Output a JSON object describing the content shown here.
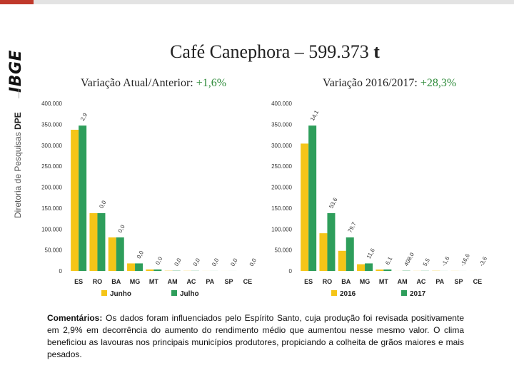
{
  "header": {
    "logo_text": "IBGE",
    "dept_prefix": "Diretoria de Pesquisas",
    "dept_abbr": "DPE",
    "divider": "|"
  },
  "title": {
    "main": "Café Canephora – 599.373",
    "unit": "t"
  },
  "colors": {
    "accent_red": "#c0392b",
    "yellow": "#f5c518",
    "green": "#2e9e5b",
    "label_green": "#2e8b3a"
  },
  "chart_data": [
    {
      "type": "bar",
      "subtitle_prefix": "Variação Atual/Anterior:",
      "subtitle_value": "+1,6%",
      "categories": [
        "ES",
        "RO",
        "BA",
        "MG",
        "MT",
        "AM",
        "AC",
        "PA",
        "SP",
        "CE"
      ],
      "series": [
        {
          "name": "Junho",
          "color": "#f5c518",
          "values": [
            337000,
            138000,
            80000,
            18000,
            3500,
            500,
            300,
            100,
            50,
            0
          ]
        },
        {
          "name": "Julho",
          "color": "#2e9e5b",
          "values": [
            347000,
            138000,
            80000,
            18000,
            3500,
            500,
            300,
            100,
            50,
            0
          ]
        }
      ],
      "change_labels": [
        "2,9",
        "0,0",
        "0,0",
        "0,0",
        "0,0",
        "0,0",
        "0,0",
        "0,0",
        "0,0",
        "0,0"
      ],
      "ylim": [
        0,
        400000
      ],
      "yticks": [
        0,
        50000,
        100000,
        150000,
        200000,
        250000,
        300000,
        350000,
        400000
      ],
      "ytick_labels": [
        "0",
        "50.000",
        "100.000",
        "150.000",
        "200.000",
        "250.000",
        "300.000",
        "350.000",
        "400.000"
      ],
      "grid": false,
      "legend_position": "bottom"
    },
    {
      "type": "bar",
      "subtitle_prefix": "Variação 2016/2017:",
      "subtitle_value": "+28,3%",
      "categories": [
        "ES",
        "RO",
        "BA",
        "MG",
        "MT",
        "AM",
        "AC",
        "PA",
        "SP",
        "CE"
      ],
      "series": [
        {
          "name": "2016",
          "color": "#f5c518",
          "values": [
            304000,
            90000,
            48000,
            16000,
            3300,
            100,
            200,
            400,
            150,
            50
          ]
        },
        {
          "name": "2017",
          "color": "#2e9e5b",
          "values": [
            347000,
            138000,
            80000,
            18000,
            3500,
            500,
            300,
            100,
            50,
            0
          ]
        }
      ],
      "change_labels": [
        "14,1",
        "53,6",
        "79,7",
        "11,6",
        "6,1",
        "408,0",
        "5,5",
        "-1,6",
        "-16,6",
        "-3,6"
      ],
      "ylim": [
        0,
        400000
      ],
      "yticks": [
        0,
        50000,
        100000,
        150000,
        200000,
        250000,
        300000,
        350000,
        400000
      ],
      "ytick_labels": [
        "0",
        "50.000",
        "100.000",
        "150.000",
        "200.000",
        "250.000",
        "300.000",
        "350.000",
        "400.000"
      ],
      "grid": false,
      "legend_position": "bottom"
    }
  ],
  "comment": {
    "label": "Comentários:",
    "text": "Os dados foram influenciados pelo Espírito Santo, cuja produção foi revisada positivamente em 2,9% em decorrência do aumento do rendimento médio que aumentou nesse mesmo valor. O clima beneficiou as lavouras nos principais municípios produtores, propiciando a colheita de grãos maiores e mais pesados."
  }
}
